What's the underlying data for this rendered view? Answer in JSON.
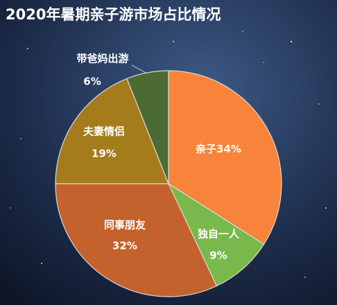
{
  "chart_data": {
    "type": "pie",
    "title": "2020年暑期亲子游市场占比情况",
    "categories": [
      "亲子",
      "独自一人",
      "同事朋友",
      "夫妻情侣",
      "带爸妈出游"
    ],
    "values": [
      34,
      9,
      32,
      19,
      6
    ],
    "value_labels": [
      "34%",
      "9%",
      "32%",
      "19%",
      "6%"
    ],
    "colors": [
      "#f7843a",
      "#79b84a",
      "#c3622c",
      "#a47c1c",
      "#4c6b32"
    ]
  }
}
